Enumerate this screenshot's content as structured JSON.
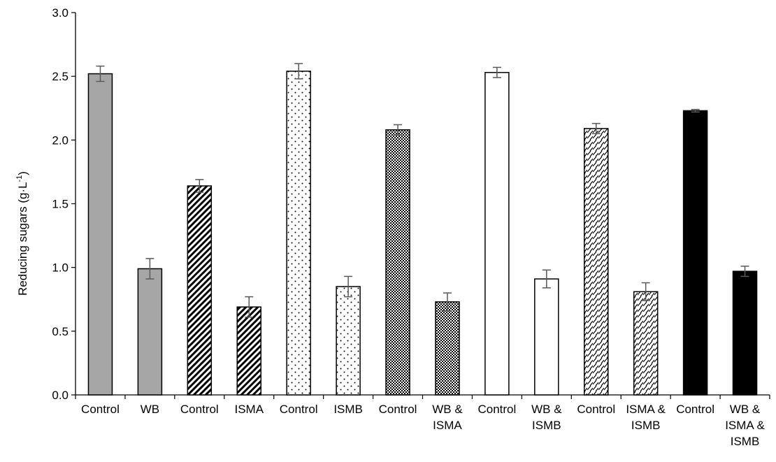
{
  "chart_data": {
    "type": "bar",
    "ylabel": "Reducing sugars (g·L",
    "ylabel_superscript": "-1",
    "ylabel_suffix": ")",
    "xlabel": "",
    "ylim": [
      0,
      3.0
    ],
    "yticks": [
      "0.0",
      "0.5",
      "1.0",
      "1.5",
      "2.0",
      "2.5",
      "3.0"
    ],
    "ytick_values": [
      0,
      0.5,
      1.0,
      1.5,
      2.0,
      2.5,
      3.0
    ],
    "grid": false,
    "legend": "none",
    "categories": [
      [
        "Control"
      ],
      [
        "WB"
      ],
      [
        "Control"
      ],
      [
        "ISMA"
      ],
      [
        "Control"
      ],
      [
        "ISMB"
      ],
      [
        "Control"
      ],
      [
        "WB &",
        "ISMA"
      ],
      [
        "Control"
      ],
      [
        "WB &",
        "ISMB"
      ],
      [
        "Control"
      ],
      [
        "ISMA &",
        "ISMB"
      ],
      [
        "Control"
      ],
      [
        "WB &",
        "ISMA &",
        "ISMB"
      ]
    ],
    "values": [
      2.52,
      0.99,
      1.64,
      0.69,
      2.54,
      0.85,
      2.08,
      0.73,
      2.53,
      0.91,
      2.09,
      0.81,
      2.23,
      0.97
    ],
    "errors": [
      0.06,
      0.08,
      0.05,
      0.08,
      0.06,
      0.08,
      0.04,
      0.07,
      0.04,
      0.07,
      0.04,
      0.07,
      0.01,
      0.04
    ],
    "fills": [
      "gray",
      "gray",
      "diag-stripe",
      "diag-stripe",
      "dots",
      "dots",
      "checker",
      "checker",
      "white",
      "white",
      "dash-stripe",
      "dash-stripe",
      "black",
      "black"
    ],
    "colors": {
      "gray": "#a6a6a6",
      "black": "#000000",
      "white": "#ffffff",
      "error_bar": "#595959",
      "axis": "#000000"
    }
  }
}
